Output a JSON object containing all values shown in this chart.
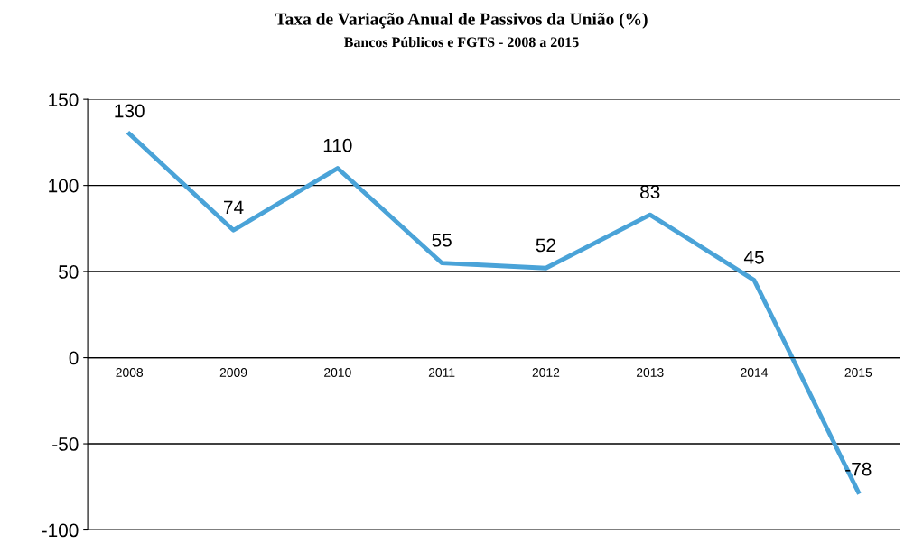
{
  "chart_data": {
    "type": "line",
    "title": "Taxa de Variação Anual de Passivos da União (%)",
    "subtitle": "Bancos Públicos e FGTS - 2008 a 2015",
    "categories": [
      "2008",
      "2009",
      "2010",
      "2011",
      "2012",
      "2013",
      "2014",
      "2015"
    ],
    "series": [
      {
        "color": "#4aa3d8",
        "values": [
          130,
          74,
          110,
          55,
          52,
          83,
          45,
          -78
        ]
      }
    ],
    "ylim": [
      -100,
      150
    ],
    "yticks": [
      -100,
      -50,
      0,
      50,
      100,
      150
    ],
    "grid": "y",
    "data_labels": true,
    "marker": "none",
    "line_style": "solid",
    "legend": false
  }
}
